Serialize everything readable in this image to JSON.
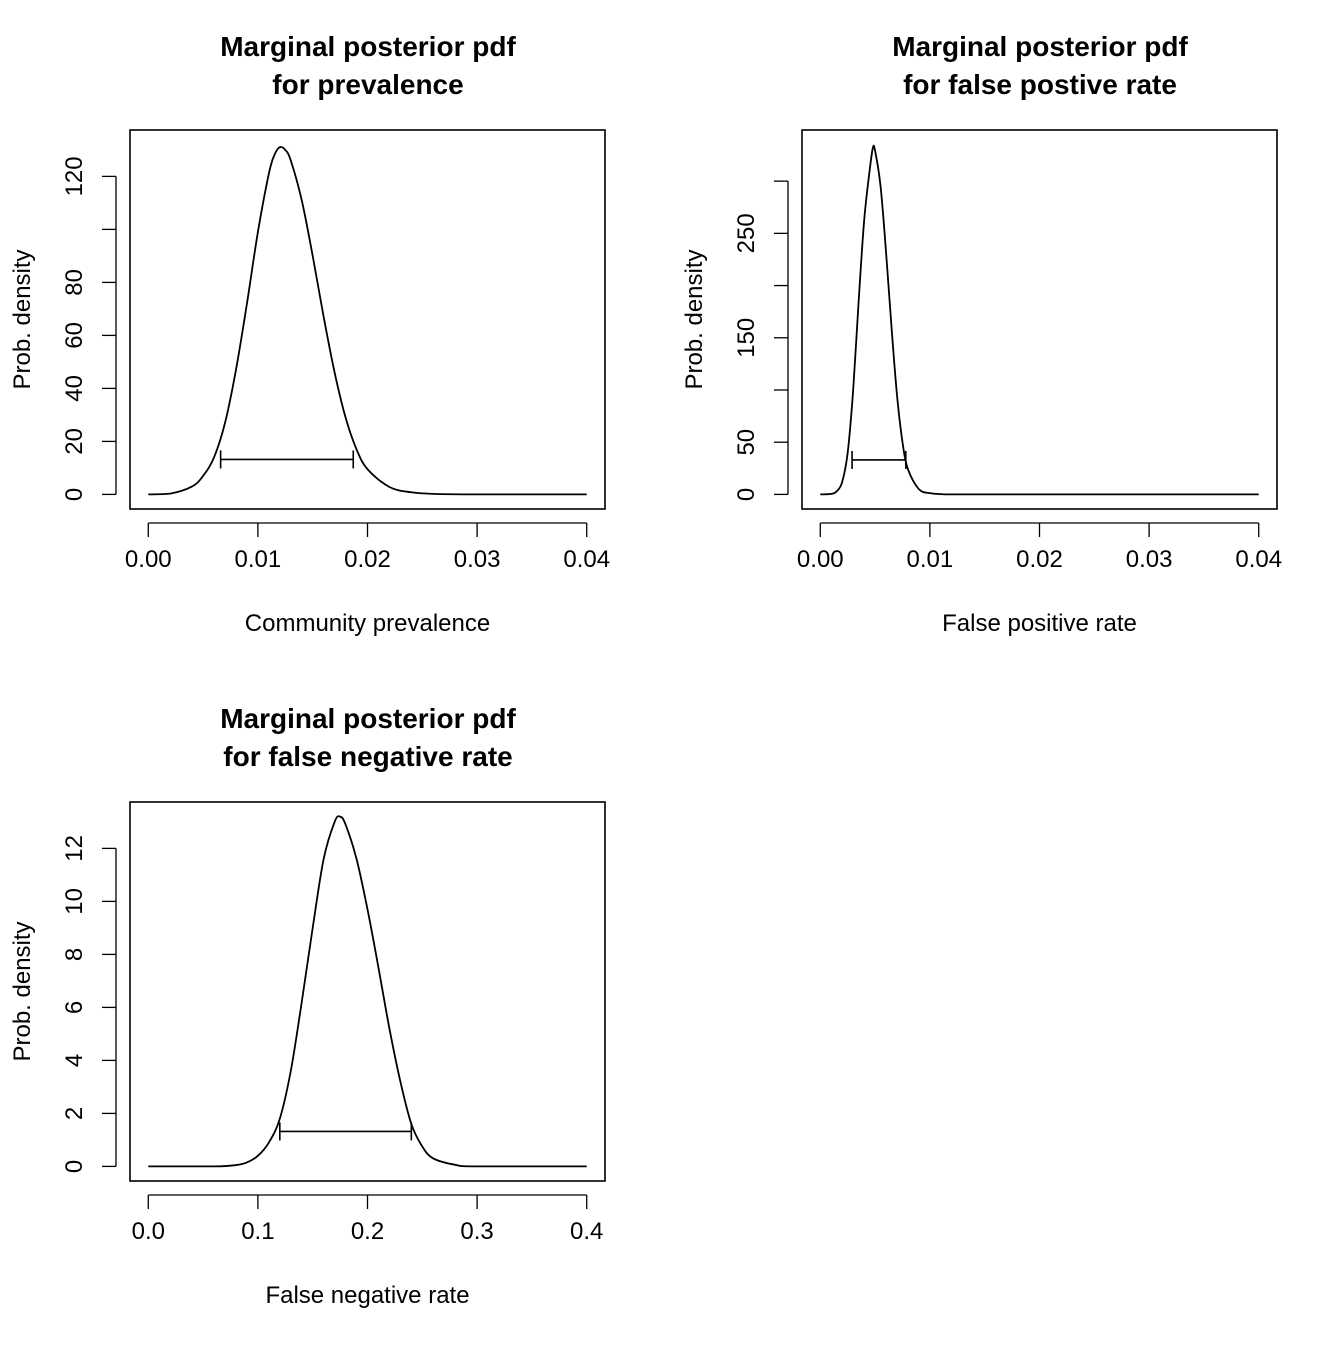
{
  "chart_data": [
    {
      "type": "line",
      "title": [
        "Marginal posterior pdf",
        "for prevalence"
      ],
      "xlabel": "Community prevalence",
      "ylabel": "Prob. density",
      "xlim": [
        0,
        0.04
      ],
      "ylim": [
        0,
        132
      ],
      "xticks": [
        0,
        0.01,
        0.02,
        0.03,
        0.04
      ],
      "xtick_labels": [
        "0.00",
        "0.01",
        "0.02",
        "0.03",
        "0.04"
      ],
      "yticks": [
        0,
        20,
        40,
        60,
        80,
        100,
        120
      ],
      "ytick_labels": [
        "0",
        "20",
        "40",
        "60",
        "80",
        "",
        "120"
      ],
      "grid": false,
      "series": [
        {
          "x": [
            0.0,
            0.002,
            0.004,
            0.005,
            0.006,
            0.007,
            0.008,
            0.009,
            0.01,
            0.011,
            0.0115,
            0.012,
            0.0125,
            0.013,
            0.014,
            0.015,
            0.016,
            0.017,
            0.018,
            0.019,
            0.02,
            0.022,
            0.024,
            0.026,
            0.03,
            0.04
          ],
          "y": [
            0,
            0.3,
            3,
            7,
            14,
            27,
            47,
            72,
            99,
            121,
            128,
            131,
            130,
            126,
            111,
            90,
            67,
            46,
            29,
            17,
            9.5,
            2.8,
            0.8,
            0.2,
            0,
            0
          ]
        }
      ],
      "interval": {
        "low": 0.0066,
        "high": 0.0187,
        "y": 13.2
      }
    },
    {
      "type": "line",
      "title": [
        "Marginal posterior pdf",
        "for false postive rate"
      ],
      "xlabel": "False positive rate",
      "ylabel": "Prob. density",
      "xlim": [
        0,
        0.04
      ],
      "ylim": [
        0,
        335
      ],
      "xticks": [
        0,
        0.01,
        0.02,
        0.03,
        0.04
      ],
      "xtick_labels": [
        "0.00",
        "0.01",
        "0.02",
        "0.03",
        "0.04"
      ],
      "yticks": [
        0,
        50,
        100,
        150,
        200,
        250,
        300
      ],
      "ytick_labels": [
        "0",
        "50",
        "",
        "150",
        "",
        "250",
        ""
      ],
      "grid": false,
      "series": [
        {
          "x": [
            0.0,
            0.001,
            0.0015,
            0.002,
            0.0025,
            0.003,
            0.0035,
            0.004,
            0.0045,
            0.0048,
            0.005,
            0.0055,
            0.006,
            0.0065,
            0.007,
            0.0075,
            0.008,
            0.009,
            0.01,
            0.011,
            0.012,
            0.016,
            0.04
          ],
          "y": [
            0,
            0.5,
            3,
            12,
            40,
            100,
            185,
            262,
            310,
            332,
            329,
            295,
            232,
            160,
            95,
            50,
            24,
            5,
            1.2,
            0.3,
            0,
            0,
            0
          ]
        }
      ],
      "interval": {
        "low": 0.0029,
        "high": 0.0078,
        "y": 33
      }
    },
    {
      "type": "line",
      "title": [
        "Marginal posterior pdf",
        "for false negative rate"
      ],
      "xlabel": "False negative rate",
      "ylabel": "Prob. density",
      "xlim": [
        0,
        0.4
      ],
      "ylim": [
        0,
        13.2
      ],
      "xticks": [
        0,
        0.1,
        0.2,
        0.3,
        0.4
      ],
      "xtick_labels": [
        "0.0",
        "0.1",
        "0.2",
        "0.3",
        "0.4"
      ],
      "yticks": [
        0,
        2,
        4,
        6,
        8,
        10,
        12
      ],
      "ytick_labels": [
        "0",
        "2",
        "4",
        "6",
        "8",
        "10",
        "12"
      ],
      "grid": false,
      "series": [
        {
          "x": [
            0.0,
            0.06,
            0.08,
            0.09,
            0.1,
            0.11,
            0.12,
            0.13,
            0.14,
            0.15,
            0.16,
            0.17,
            0.175,
            0.18,
            0.19,
            0.2,
            0.21,
            0.22,
            0.23,
            0.24,
            0.25,
            0.26,
            0.28,
            0.3,
            0.4
          ],
          "y": [
            0,
            0,
            0.05,
            0.15,
            0.4,
            0.9,
            1.8,
            3.6,
            6.2,
            9.0,
            11.6,
            13.0,
            13.2,
            12.9,
            11.6,
            9.7,
            7.5,
            5.2,
            3.2,
            1.6,
            0.75,
            0.3,
            0.06,
            0,
            0
          ]
        }
      ],
      "interval": {
        "low": 0.12,
        "high": 0.24,
        "y": 1.32
      }
    }
  ]
}
